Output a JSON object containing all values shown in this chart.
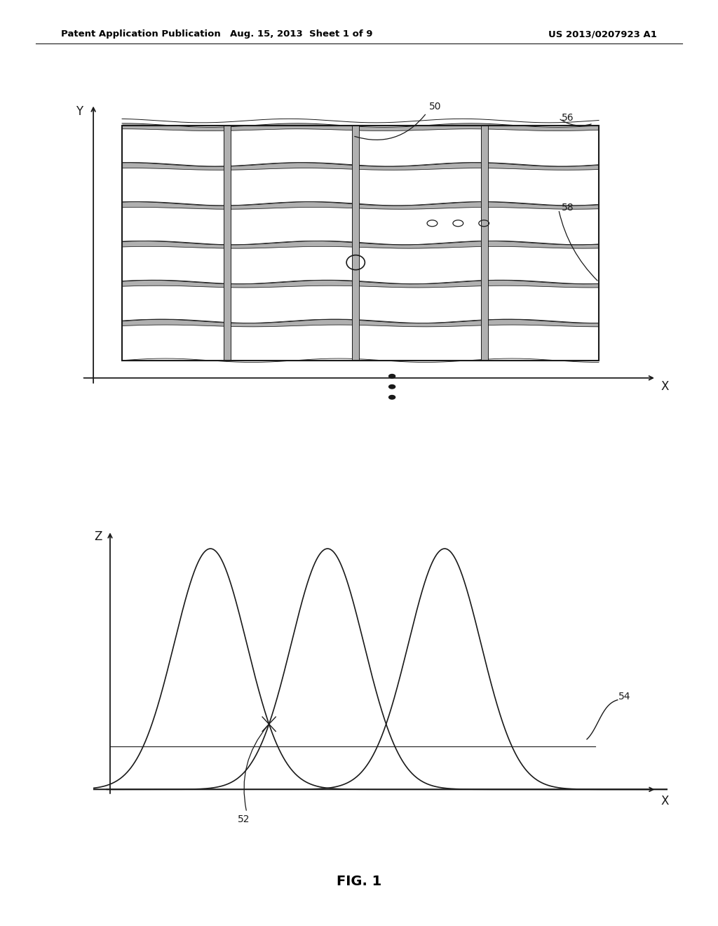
{
  "bg_color": "#ffffff",
  "line_color": "#1a1a1a",
  "header_left": "Patent Application Publication",
  "header_center": "Aug. 15, 2013  Sheet 1 of 9",
  "header_right": "US 2013/0207923 A1",
  "fig_label": "FIG. 1",
  "label_50": "50",
  "label_52": "52",
  "label_54": "54",
  "label_56": "56",
  "label_58": "58"
}
